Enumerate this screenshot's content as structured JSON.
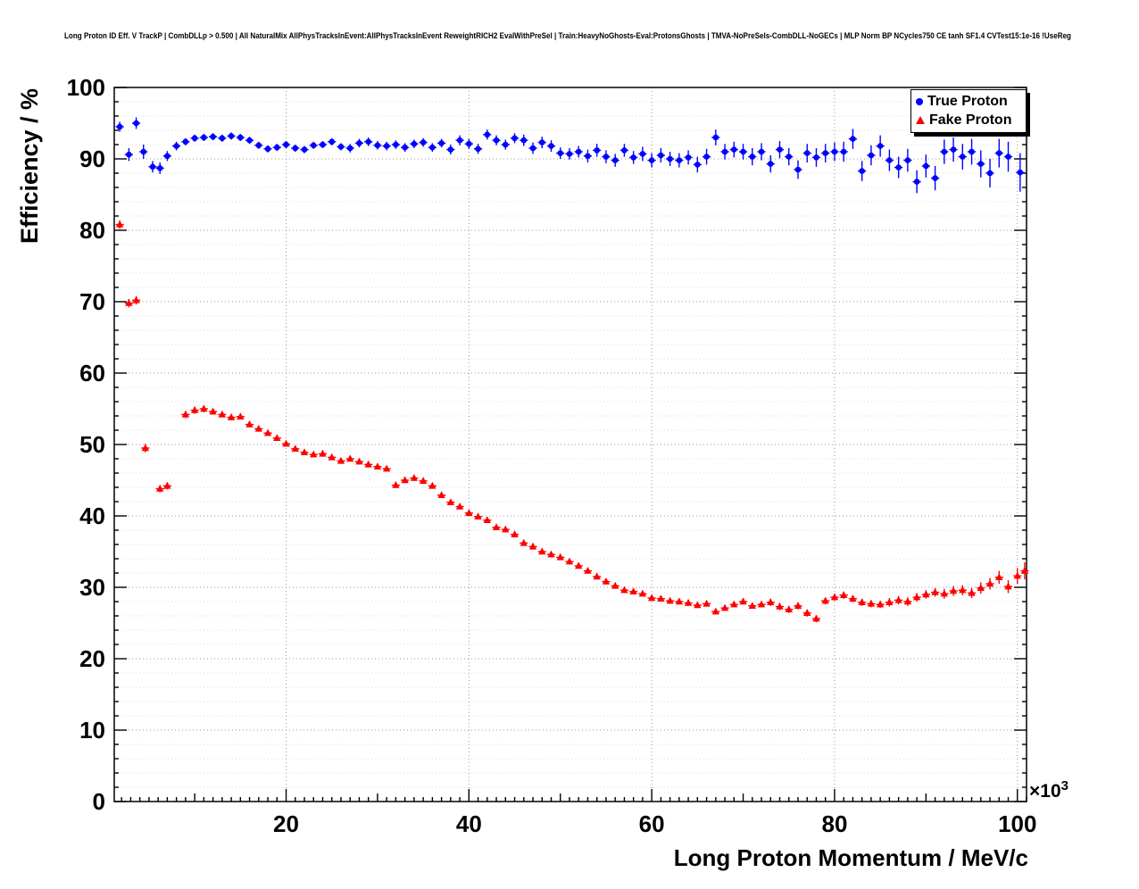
{
  "chart_data": {
    "type": "scatter",
    "title": "Long Proton ID Eff. V TrackP | CombDLLp > 0.500 | All NaturalMix AllPhysTracksInEvent:AllPhysTracksInEvent ReweightRICH2 EvalWithPreSel | Train:HeavyNoGhosts-Eval:ProtonsGhosts | TMVA-NoPreSels-CombDLL-NoGECs | MLP Norm BP NCycles750 CE tanh SF1.4 CVTest15:1e-16 !UseReg",
    "xlabel": "Long Proton Momentum / MeV/c",
    "ylabel": "Efficiency / %",
    "x_exponent": {
      "base": "×10",
      "sup": "3"
    },
    "xlim": [
      1.2,
      101.0
    ],
    "ylim": [
      0,
      100
    ],
    "xticks": [
      20,
      40,
      60,
      80,
      100
    ],
    "yticks": [
      0,
      10,
      20,
      30,
      40,
      50,
      60,
      70,
      80,
      90,
      100
    ],
    "grid": {
      "style": "dotted",
      "major_color": "#999999",
      "minor_color": "#dcdcdc"
    },
    "frame_color": "#000000",
    "legend": {
      "position": "top-right",
      "entries": [
        {
          "label": "True Proton",
          "marker": "circle",
          "color": "#0000ff"
        },
        {
          "label": "Fake Proton",
          "marker": "triangle-up",
          "color": "#ff0000"
        }
      ]
    },
    "series": [
      {
        "name": "True Proton",
        "marker": "circle",
        "color": "#0000ff",
        "bin_half_width": 0.45,
        "points": [
          [
            1.8,
            94.5,
            0.7
          ],
          [
            2.8,
            90.6,
            0.9
          ],
          [
            3.6,
            95.0,
            0.8
          ],
          [
            4.4,
            91.0,
            1.0
          ],
          [
            5.4,
            88.9,
            0.8
          ],
          [
            6.2,
            88.7,
            0.8
          ],
          [
            7,
            90.4,
            0.7
          ],
          [
            8,
            91.8,
            0.6
          ],
          [
            9,
            92.4,
            0.5
          ],
          [
            10,
            92.9,
            0.5
          ],
          [
            11,
            93.0,
            0.5
          ],
          [
            12,
            93.1,
            0.5
          ],
          [
            13,
            92.9,
            0.5
          ],
          [
            14,
            93.2,
            0.5
          ],
          [
            15,
            93.0,
            0.5
          ],
          [
            16,
            92.6,
            0.5
          ],
          [
            17,
            91.9,
            0.5
          ],
          [
            18,
            91.4,
            0.5
          ],
          [
            19,
            91.6,
            0.5
          ],
          [
            20,
            92.0,
            0.5
          ],
          [
            21,
            91.5,
            0.5
          ],
          [
            22,
            91.3,
            0.5
          ],
          [
            23,
            91.9,
            0.5
          ],
          [
            24,
            92.0,
            0.5
          ],
          [
            25,
            92.4,
            0.5
          ],
          [
            26,
            91.7,
            0.5
          ],
          [
            27,
            91.5,
            0.6
          ],
          [
            28,
            92.2,
            0.6
          ],
          [
            29,
            92.4,
            0.6
          ],
          [
            30,
            91.9,
            0.6
          ],
          [
            31,
            91.8,
            0.6
          ],
          [
            32,
            92.0,
            0.6
          ],
          [
            33,
            91.6,
            0.6
          ],
          [
            34,
            92.1,
            0.6
          ],
          [
            35,
            92.3,
            0.6
          ],
          [
            36,
            91.6,
            0.6
          ],
          [
            37,
            92.2,
            0.6
          ],
          [
            38,
            91.3,
            0.7
          ],
          [
            39,
            92.6,
            0.7
          ],
          [
            40,
            92.1,
            0.7
          ],
          [
            41,
            91.4,
            0.7
          ],
          [
            42,
            93.4,
            0.7
          ],
          [
            43,
            92.6,
            0.7
          ],
          [
            44,
            92.0,
            0.7
          ],
          [
            45,
            92.9,
            0.7
          ],
          [
            46,
            92.6,
            0.8
          ],
          [
            47,
            91.5,
            0.8
          ],
          [
            48,
            92.3,
            0.8
          ],
          [
            49,
            91.8,
            0.8
          ],
          [
            50,
            90.8,
            0.8
          ],
          [
            51,
            90.7,
            0.8
          ],
          [
            52,
            91.0,
            0.8
          ],
          [
            53,
            90.4,
            0.9
          ],
          [
            54,
            91.2,
            0.9
          ],
          [
            55,
            90.3,
            0.9
          ],
          [
            56,
            89.8,
            0.9
          ],
          [
            57,
            91.2,
            0.9
          ],
          [
            58,
            90.2,
            0.9
          ],
          [
            59,
            90.7,
            1.0
          ],
          [
            60,
            89.8,
            1.0
          ],
          [
            61,
            90.5,
            1.0
          ],
          [
            62,
            90.0,
            1.0
          ],
          [
            63,
            89.8,
            1.0
          ],
          [
            64,
            90.2,
            1.0
          ],
          [
            65,
            89.2,
            1.1
          ],
          [
            66,
            90.3,
            1.1
          ],
          [
            67,
            93.0,
            1.1
          ],
          [
            68,
            91.0,
            1.1
          ],
          [
            69,
            91.3,
            1.1
          ],
          [
            70,
            91.0,
            1.1
          ],
          [
            71,
            90.3,
            1.2
          ],
          [
            72,
            91.0,
            1.2
          ],
          [
            73,
            89.3,
            1.2
          ],
          [
            74,
            91.3,
            1.2
          ],
          [
            75,
            90.3,
            1.2
          ],
          [
            76,
            88.5,
            1.3
          ],
          [
            77,
            90.8,
            1.3
          ],
          [
            78,
            90.2,
            1.3
          ],
          [
            79,
            90.8,
            1.3
          ],
          [
            80,
            91.0,
            1.3
          ],
          [
            81,
            91.0,
            1.4
          ],
          [
            82,
            92.8,
            1.4
          ],
          [
            83,
            88.3,
            1.4
          ],
          [
            84,
            90.5,
            1.4
          ],
          [
            85,
            91.8,
            1.5
          ],
          [
            86,
            89.8,
            1.5
          ],
          [
            87,
            88.8,
            1.5
          ],
          [
            88,
            89.8,
            1.6
          ],
          [
            89,
            86.8,
            1.6
          ],
          [
            90,
            89.0,
            1.6
          ],
          [
            91,
            87.3,
            1.7
          ],
          [
            92,
            91.0,
            1.7
          ],
          [
            93,
            91.3,
            1.7
          ],
          [
            94,
            90.3,
            1.8
          ],
          [
            95,
            91.0,
            1.8
          ],
          [
            96,
            89.3,
            1.9
          ],
          [
            97,
            88.0,
            2.0
          ],
          [
            98,
            90.8,
            2.0
          ],
          [
            99,
            90.3,
            2.1
          ],
          [
            100.3,
            88.1,
            2.7
          ]
        ]
      },
      {
        "name": "Fake Proton",
        "marker": "triangle-up",
        "color": "#ff0000",
        "bin_half_width": 0.45,
        "points": [
          [
            1.8,
            80.8,
            0.6
          ],
          [
            2.8,
            69.8,
            0.6
          ],
          [
            3.6,
            70.2,
            0.6
          ],
          [
            4.6,
            49.5,
            0.6
          ],
          [
            6.2,
            43.8,
            0.5
          ],
          [
            7,
            44.2,
            0.5
          ],
          [
            9,
            54.2,
            0.5
          ],
          [
            10,
            54.8,
            0.5
          ],
          [
            11,
            55.0,
            0.5
          ],
          [
            12,
            54.6,
            0.4
          ],
          [
            13,
            54.2,
            0.4
          ],
          [
            14,
            53.8,
            0.4
          ],
          [
            15,
            53.9,
            0.4
          ],
          [
            16,
            52.8,
            0.4
          ],
          [
            17,
            52.2,
            0.4
          ],
          [
            18,
            51.6,
            0.4
          ],
          [
            19,
            50.9,
            0.4
          ],
          [
            20,
            50.1,
            0.4
          ],
          [
            21,
            49.4,
            0.4
          ],
          [
            22,
            48.9,
            0.4
          ],
          [
            23,
            48.6,
            0.4
          ],
          [
            24,
            48.7,
            0.4
          ],
          [
            25,
            48.2,
            0.4
          ],
          [
            26,
            47.7,
            0.4
          ],
          [
            27,
            48.0,
            0.4
          ],
          [
            28,
            47.6,
            0.4
          ],
          [
            29,
            47.2,
            0.4
          ],
          [
            30,
            46.9,
            0.4
          ],
          [
            31,
            46.6,
            0.4
          ],
          [
            32,
            44.3,
            0.4
          ],
          [
            33,
            45.0,
            0.4
          ],
          [
            34,
            45.3,
            0.4
          ],
          [
            35,
            44.9,
            0.4
          ],
          [
            36,
            44.2,
            0.4
          ],
          [
            37,
            42.9,
            0.4
          ],
          [
            38,
            41.9,
            0.4
          ],
          [
            39,
            41.3,
            0.4
          ],
          [
            40,
            40.4,
            0.4
          ],
          [
            41,
            39.9,
            0.4
          ],
          [
            42,
            39.4,
            0.4
          ],
          [
            43,
            38.4,
            0.4
          ],
          [
            44,
            38.1,
            0.4
          ],
          [
            45,
            37.4,
            0.4
          ],
          [
            46,
            36.2,
            0.4
          ],
          [
            47,
            35.7,
            0.4
          ],
          [
            48,
            35.0,
            0.4
          ],
          [
            49,
            34.6,
            0.4
          ],
          [
            50,
            34.2,
            0.4
          ],
          [
            51,
            33.6,
            0.4
          ],
          [
            52,
            33.0,
            0.4
          ],
          [
            53,
            32.3,
            0.4
          ],
          [
            54,
            31.5,
            0.4
          ],
          [
            55,
            30.8,
            0.4
          ],
          [
            56,
            30.2,
            0.4
          ],
          [
            57,
            29.6,
            0.4
          ],
          [
            58,
            29.4,
            0.4
          ],
          [
            59,
            29.1,
            0.4
          ],
          [
            60,
            28.5,
            0.4
          ],
          [
            61,
            28.4,
            0.4
          ],
          [
            62,
            28.1,
            0.4
          ],
          [
            63,
            28.0,
            0.4
          ],
          [
            64,
            27.8,
            0.4
          ],
          [
            65,
            27.5,
            0.4
          ],
          [
            66,
            27.7,
            0.4
          ],
          [
            67,
            26.6,
            0.4
          ],
          [
            68,
            27.1,
            0.4
          ],
          [
            69,
            27.6,
            0.4
          ],
          [
            70,
            28.0,
            0.4
          ],
          [
            71,
            27.4,
            0.4
          ],
          [
            72,
            27.6,
            0.4
          ],
          [
            73,
            27.9,
            0.5
          ],
          [
            74,
            27.3,
            0.5
          ],
          [
            75,
            26.9,
            0.5
          ],
          [
            76,
            27.4,
            0.5
          ],
          [
            77,
            26.4,
            0.5
          ],
          [
            78,
            25.6,
            0.5
          ],
          [
            79,
            28.1,
            0.5
          ],
          [
            80,
            28.6,
            0.5
          ],
          [
            81,
            28.9,
            0.5
          ],
          [
            82,
            28.4,
            0.5
          ],
          [
            83,
            27.9,
            0.5
          ],
          [
            84,
            27.7,
            0.5
          ],
          [
            85,
            27.6,
            0.5
          ],
          [
            86,
            27.9,
            0.6
          ],
          [
            87,
            28.2,
            0.6
          ],
          [
            88,
            28.0,
            0.6
          ],
          [
            89,
            28.6,
            0.6
          ],
          [
            90,
            29.0,
            0.6
          ],
          [
            91,
            29.3,
            0.6
          ],
          [
            92,
            29.1,
            0.7
          ],
          [
            93,
            29.5,
            0.7
          ],
          [
            94,
            29.6,
            0.7
          ],
          [
            95,
            29.2,
            0.7
          ],
          [
            96,
            29.9,
            0.8
          ],
          [
            97,
            30.5,
            0.8
          ],
          [
            98,
            31.4,
            0.9
          ],
          [
            99,
            30.1,
            0.9
          ],
          [
            100,
            31.6,
            1.1
          ],
          [
            100.8,
            32.3,
            1.2
          ]
        ]
      }
    ]
  }
}
